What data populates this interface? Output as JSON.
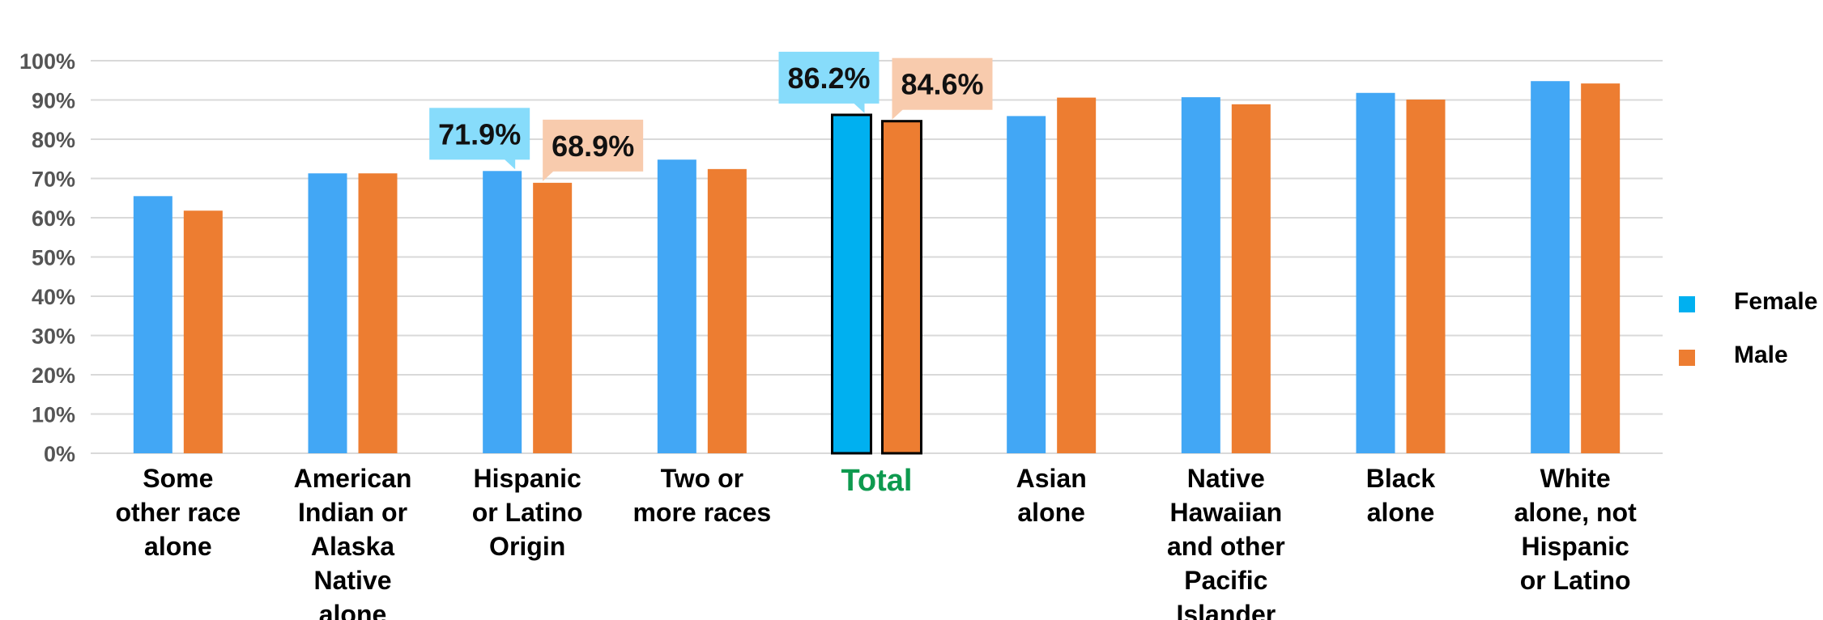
{
  "chart_data": {
    "type": "bar",
    "categories": [
      "Some other race alone",
      "American Indian or Alaska Native alone",
      "Hispanic or Latino Origin",
      "Two or more races",
      "Total",
      "Asian alone",
      "Native Hawaiian and other Pacific Islander",
      "Black alone",
      "White alone, not Hispanic or Latino"
    ],
    "category_lines": [
      [
        "Some",
        "other race",
        "alone"
      ],
      [
        "American",
        "Indian or",
        "Alaska",
        "Native",
        "alone"
      ],
      [
        "Hispanic",
        "or Latino",
        "Origin"
      ],
      [
        "Two or",
        "more races"
      ],
      [
        "Total"
      ],
      [
        "Asian",
        "alone"
      ],
      [
        "Native",
        "Hawaiian",
        "and other",
        "Pacific",
        "Islander"
      ],
      [
        "Black",
        "alone"
      ],
      [
        "White",
        "alone, not",
        "Hispanic",
        "or Latino"
      ]
    ],
    "series": [
      {
        "name": "Female",
        "color": "#42a7f5",
        "values": [
          65.5,
          71.3,
          71.9,
          74.8,
          86.2,
          85.9,
          90.7,
          91.8,
          94.8
        ]
      },
      {
        "name": "Male",
        "color": "#ed7d31",
        "values": [
          61.8,
          71.3,
          68.9,
          72.4,
          84.6,
          90.6,
          88.9,
          90.1,
          94.2
        ]
      }
    ],
    "highlight": {
      "category_index": 4,
      "female_color": "#00b0f0",
      "male_color": "#ed7d31",
      "label_color": "#0e9a4f"
    },
    "callouts": [
      {
        "category_index": 2,
        "series": "Female",
        "text": "71.9%",
        "bg": "#87dcfb"
      },
      {
        "category_index": 2,
        "series": "Male",
        "text": "68.9%",
        "bg": "#f8cbad"
      },
      {
        "category_index": 4,
        "series": "Female",
        "text": "86.2%",
        "bg": "#87dcfb"
      },
      {
        "category_index": 4,
        "series": "Male",
        "text": "84.6%",
        "bg": "#f8cbad"
      }
    ],
    "y_ticks": [
      "0%",
      "10%",
      "20%",
      "30%",
      "40%",
      "50%",
      "60%",
      "70%",
      "80%",
      "90%",
      "100%"
    ],
    "ylim": [
      0,
      100
    ],
    "grid": true,
    "legend": {
      "position": "right",
      "items": [
        {
          "label": "Female",
          "color": "#00b0f0"
        },
        {
          "label": "Male",
          "color": "#ed7d31"
        }
      ]
    },
    "title": "",
    "xlabel": "",
    "ylabel": ""
  }
}
